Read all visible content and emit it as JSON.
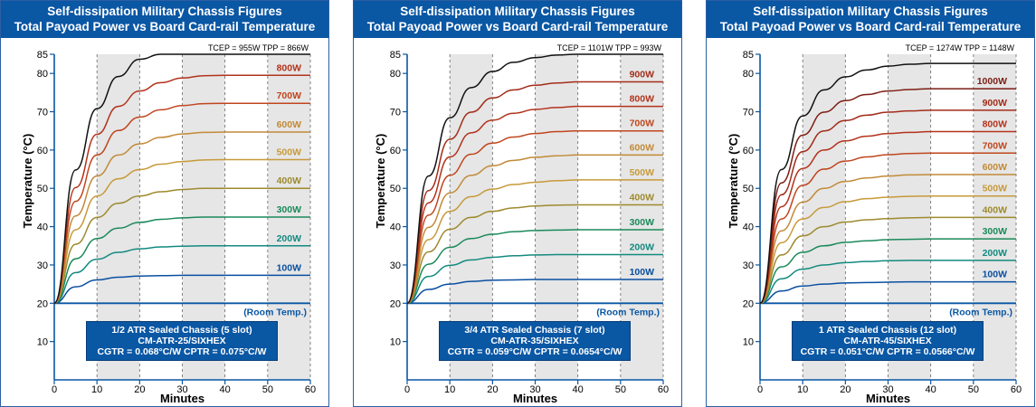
{
  "header": {
    "line1": "Self-dissipation Military Chassis Figures",
    "line2": "Total Payoad Power vs Board Card-rail Temperature"
  },
  "colors": {
    "header_bg": "#0a57a4",
    "shade": "#e6e6e6",
    "room_line": "#0a57a4",
    "series_by_watt": {
      "100W": "#0a4fa0",
      "200W": "#138a80",
      "300W": "#1a8a5a",
      "400W": "#9e8a2e",
      "500W": "#c79a3a",
      "600W": "#c28a38",
      "700W": "#c0461e",
      "800W": "#b3331c",
      "900W": "#a32c1a",
      "1000W": "#7c1e14",
      "TCEP": "#111111"
    }
  },
  "chart_data": [
    {
      "type": "line",
      "x": [
        0,
        5,
        10,
        15,
        20,
        25,
        30,
        35,
        40,
        45,
        50,
        55,
        60
      ],
      "xlabel": "Minutes",
      "ylabel": "Temperature (°C)",
      "xlim": [
        0,
        60
      ],
      "ylim": [
        0,
        85
      ],
      "x_ticks": [
        0,
        10,
        20,
        30,
        40,
        50,
        60
      ],
      "y_ticks": [
        10,
        20,
        30,
        40,
        50,
        60,
        70,
        80,
        85
      ],
      "shaded_x_ranges": [
        [
          10,
          20
        ],
        [
          30,
          40
        ],
        [
          50,
          60
        ]
      ],
      "top_note": "TCEP = 955W  TPP = 866W",
      "room_temp": {
        "label": "(Room Temp.)",
        "value": 20
      },
      "series": [
        {
          "name": "100W",
          "values": [
            20,
            24.3,
            26.1,
            26.8,
            27.1,
            27.2,
            27.3,
            27.3,
            27.3,
            27.3,
            27.3,
            27.3,
            27.3
          ]
        },
        {
          "name": "200W",
          "values": [
            20,
            28.0,
            31.5,
            33.3,
            34.2,
            34.7,
            34.9,
            35.0,
            35.0,
            35.0,
            35.0,
            35.0,
            35.0
          ]
        },
        {
          "name": "300W",
          "values": [
            20,
            31.6,
            36.9,
            39.6,
            41.1,
            41.9,
            42.3,
            42.5,
            42.5,
            42.5,
            42.5,
            42.5,
            42.5
          ]
        },
        {
          "name": "400W",
          "values": [
            20,
            35.4,
            42.4,
            46.1,
            48.0,
            49.1,
            49.7,
            50.0,
            50.0,
            50.0,
            50.0,
            50.0,
            50.0
          ]
        },
        {
          "name": "500W",
          "values": [
            20,
            39.2,
            48.0,
            52.5,
            54.9,
            56.3,
            57.0,
            57.4,
            57.5,
            57.5,
            57.5,
            57.5,
            57.5
          ]
        },
        {
          "name": "600W",
          "values": [
            20,
            42.8,
            53.2,
            58.7,
            61.6,
            63.3,
            64.2,
            64.6,
            64.7,
            64.7,
            64.7,
            64.7,
            64.7
          ]
        },
        {
          "name": "700W",
          "values": [
            20,
            46.6,
            58.7,
            65.1,
            68.6,
            70.5,
            71.6,
            72.1,
            72.2,
            72.2,
            72.2,
            72.2,
            72.2
          ]
        },
        {
          "name": "800W",
          "values": [
            20,
            50.2,
            64.1,
            71.4,
            75.4,
            77.6,
            78.8,
            79.4,
            79.5,
            79.5,
            79.5,
            79.5,
            79.5
          ]
        },
        {
          "name": "TCEP",
          "values": [
            20,
            54.8,
            70.8,
            79.2,
            83.7,
            86.3,
            87.7,
            88.3,
            88.5,
            88.5,
            88.5,
            88.5,
            88.5
          ]
        }
      ],
      "series_labels": [
        "100W",
        "200W",
        "300W",
        "400W",
        "500W",
        "600W",
        "700W",
        "800W"
      ],
      "spec": {
        "line1": "1/2 ATR Sealed Chassis (5 slot)",
        "line2": "CM-ATR-25/SIXHEX",
        "line3": "CGTR = 0.068°C/W   CPTR = 0.075°C/W"
      }
    },
    {
      "type": "line",
      "x": [
        0,
        5,
        10,
        15,
        20,
        25,
        30,
        35,
        40,
        45,
        50,
        55,
        60
      ],
      "xlabel": "Minutes",
      "ylabel": "Temperature (°C)",
      "xlim": [
        0,
        60
      ],
      "ylim": [
        0,
        85
      ],
      "x_ticks": [
        0,
        10,
        20,
        30,
        40,
        50,
        60
      ],
      "y_ticks": [
        10,
        20,
        30,
        40,
        50,
        60,
        70,
        80,
        85
      ],
      "shaded_x_ranges": [
        [
          10,
          20
        ],
        [
          30,
          40
        ],
        [
          50,
          60
        ]
      ],
      "top_note": "TCEP = 1101W  TPP = 993W",
      "room_temp": {
        "label": "(Room Temp.)",
        "value": 20
      },
      "series": [
        {
          "name": "100W",
          "values": [
            20,
            23.6,
            25.0,
            25.7,
            26.0,
            26.1,
            26.2,
            26.2,
            26.2,
            26.2,
            26.2,
            26.2,
            26.2
          ]
        },
        {
          "name": "200W",
          "values": [
            20,
            27.0,
            29.9,
            31.3,
            32.0,
            32.4,
            32.6,
            32.7,
            32.7,
            32.7,
            32.7,
            32.7,
            32.7
          ]
        },
        {
          "name": "300W",
          "values": [
            20,
            30.2,
            34.6,
            36.9,
            38.0,
            38.7,
            39.0,
            39.1,
            39.2,
            39.2,
            39.2,
            39.2,
            39.2
          ]
        },
        {
          "name": "400W",
          "values": [
            20,
            33.4,
            39.3,
            42.4,
            44.0,
            44.9,
            45.4,
            45.6,
            45.7,
            45.7,
            45.7,
            45.7,
            45.7
          ]
        },
        {
          "name": "500W",
          "values": [
            20,
            36.6,
            44.0,
            47.8,
            49.8,
            51.0,
            51.6,
            52.0,
            52.2,
            52.2,
            52.2,
            52.2,
            52.2
          ]
        },
        {
          "name": "600W",
          "values": [
            20,
            39.8,
            48.8,
            53.4,
            55.9,
            57.3,
            58.1,
            58.5,
            58.7,
            58.7,
            58.7,
            58.7,
            58.7
          ]
        },
        {
          "name": "700W",
          "values": [
            20,
            43.0,
            53.4,
            58.9,
            61.8,
            63.4,
            64.3,
            64.8,
            65.0,
            65.0,
            65.0,
            65.0,
            65.0
          ]
        },
        {
          "name": "800W",
          "values": [
            20,
            46.2,
            58.2,
            64.5,
            67.8,
            69.6,
            70.6,
            71.1,
            71.4,
            71.4,
            71.4,
            71.4,
            71.4
          ]
        },
        {
          "name": "900W",
          "values": [
            20,
            49.4,
            62.8,
            69.9,
            73.6,
            75.7,
            76.9,
            77.5,
            77.8,
            77.8,
            77.8,
            77.8,
            77.8
          ]
        },
        {
          "name": "TCEP",
          "values": [
            20,
            53.2,
            68.4,
            76.3,
            80.5,
            82.9,
            84.1,
            84.8,
            85.0,
            85.0,
            85.0,
            85.0,
            85.0
          ]
        }
      ],
      "series_labels": [
        "100W",
        "200W",
        "300W",
        "400W",
        "500W",
        "600W",
        "700W",
        "800W",
        "900W"
      ],
      "spec": {
        "line1": "3/4 ATR Sealed Chassis (7 slot)",
        "line2": "CM-ATR-35/SIXHEX",
        "line3": "CGTR = 0.059°C/W   CPTR = 0.0654°C/W"
      }
    },
    {
      "type": "line",
      "x": [
        0,
        5,
        10,
        15,
        20,
        25,
        30,
        35,
        40,
        45,
        50,
        55,
        60
      ],
      "xlabel": "Minutes",
      "ylabel": "Temperature (°C)",
      "xlim": [
        0,
        60
      ],
      "ylim": [
        0,
        85
      ],
      "x_ticks": [
        0,
        10,
        20,
        30,
        40,
        50,
        60
      ],
      "y_ticks": [
        10,
        20,
        30,
        40,
        50,
        60,
        70,
        80,
        85
      ],
      "shaded_x_ranges": [
        [
          10,
          20
        ],
        [
          30,
          40
        ],
        [
          50,
          60
        ]
      ],
      "top_note": "TCEP = 1274W  TPP = 1148W",
      "room_temp": {
        "label": "(Room Temp.)",
        "value": 20
      },
      "series": [
        {
          "name": "100W",
          "values": [
            20,
            23.2,
            24.5,
            25.0,
            25.3,
            25.4,
            25.5,
            25.6,
            25.6,
            25.6,
            25.6,
            25.6,
            25.6
          ]
        },
        {
          "name": "200W",
          "values": [
            20,
            26.4,
            28.9,
            30.0,
            30.6,
            30.9,
            31.1,
            31.2,
            31.2,
            31.2,
            31.2,
            31.2,
            31.2
          ]
        },
        {
          "name": "300W",
          "values": [
            20,
            29.5,
            33.3,
            35.0,
            35.9,
            36.3,
            36.6,
            36.7,
            36.8,
            36.8,
            36.8,
            36.8,
            36.8
          ]
        },
        {
          "name": "400W",
          "values": [
            20,
            32.6,
            37.6,
            40.0,
            41.2,
            41.8,
            42.1,
            42.3,
            42.4,
            42.4,
            42.4,
            42.4,
            42.4
          ]
        },
        {
          "name": "500W",
          "values": [
            20,
            35.8,
            42.0,
            45.0,
            46.5,
            47.3,
            47.7,
            47.9,
            48.0,
            48.0,
            48.0,
            48.0,
            48.0
          ]
        },
        {
          "name": "600W",
          "values": [
            20,
            38.9,
            46.4,
            50.0,
            51.8,
            52.7,
            53.2,
            53.5,
            53.6,
            53.6,
            53.6,
            53.6,
            53.6
          ]
        },
        {
          "name": "700W",
          "values": [
            20,
            42.0,
            50.8,
            55.0,
            57.1,
            58.2,
            58.8,
            59.1,
            59.2,
            59.2,
            59.2,
            59.2,
            59.2
          ]
        },
        {
          "name": "800W",
          "values": [
            20,
            45.2,
            55.2,
            60.0,
            62.4,
            63.6,
            64.3,
            64.6,
            64.8,
            64.8,
            64.8,
            64.8,
            64.8
          ]
        },
        {
          "name": "900W",
          "values": [
            20,
            48.3,
            59.6,
            65.0,
            67.7,
            69.1,
            69.9,
            70.2,
            70.4,
            70.4,
            70.4,
            70.4,
            70.4
          ]
        },
        {
          "name": "1000W",
          "values": [
            20,
            51.4,
            63.9,
            69.9,
            72.9,
            74.5,
            75.4,
            75.8,
            76.0,
            76.0,
            76.0,
            76.0,
            76.0
          ]
        },
        {
          "name": "TCEP",
          "values": [
            20,
            54.9,
            68.9,
            75.7,
            79.1,
            80.9,
            81.9,
            82.4,
            82.6,
            82.6,
            82.6,
            82.6,
            82.6
          ]
        }
      ],
      "series_labels": [
        "100W",
        "200W",
        "300W",
        "400W",
        "500W",
        "600W",
        "700W",
        "800W",
        "900W",
        "1000W"
      ],
      "spec": {
        "line1": "1 ATR Sealed Chassis (12 slot)",
        "line2": "CM-ATR-45/SIXHEX",
        "line3": "CGTR = 0.051°C/W   CPTR = 0.0566°C/W"
      }
    }
  ]
}
